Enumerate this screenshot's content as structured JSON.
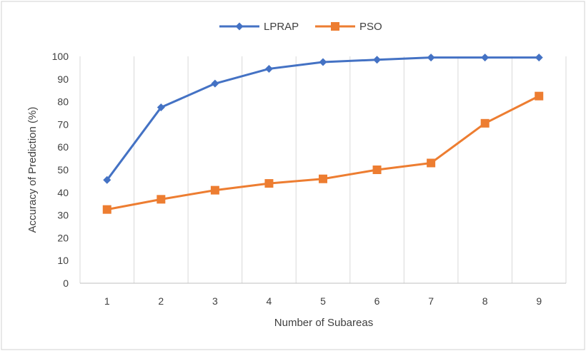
{
  "chart_data": {
    "type": "line",
    "title": "",
    "xlabel": "Number of Subareas",
    "ylabel": "Accuracy of Prediction (%)",
    "categories": [
      "1",
      "2",
      "3",
      "4",
      "5",
      "6",
      "7",
      "8",
      "9"
    ],
    "ylim": [
      0,
      100
    ],
    "yticks": [
      0,
      10,
      20,
      30,
      40,
      50,
      60,
      70,
      80,
      90,
      100
    ],
    "grid": "vertical",
    "legend_position": "top",
    "series": [
      {
        "name": "LPRAP",
        "color": "#4472C4",
        "marker": "diamond",
        "values": [
          45.5,
          77.5,
          88,
          94.5,
          97.5,
          98.5,
          99.5,
          99.5,
          99.5
        ]
      },
      {
        "name": "PSO",
        "color": "#ED7D31",
        "marker": "square",
        "values": [
          32.5,
          37,
          41,
          44,
          46,
          50,
          53,
          70.5,
          82.5
        ]
      }
    ]
  }
}
